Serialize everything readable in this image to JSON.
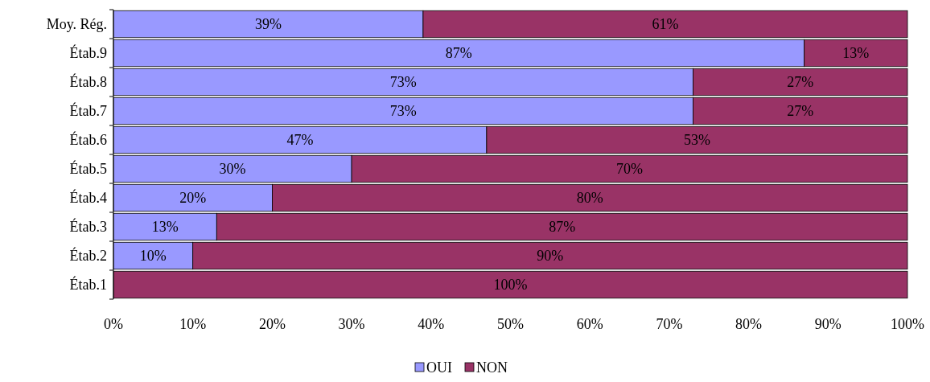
{
  "chart_data": {
    "type": "bar",
    "orientation": "horizontal",
    "stacked": true,
    "categories": [
      "Moy. Rég.",
      "Étab.9",
      "Étab.8",
      "Étab.7",
      "Étab.6",
      "Étab.5",
      "Étab.4",
      "Étab.3",
      "Étab.2",
      "Étab.1"
    ],
    "series": [
      {
        "name": "OUI",
        "color": "#9999ff",
        "values": [
          39,
          87,
          73,
          73,
          47,
          30,
          20,
          13,
          10,
          0
        ],
        "value_labels": [
          "39%",
          "87%",
          "73%",
          "73%",
          "47%",
          "30%",
          "20%",
          "13%",
          "10%",
          null
        ]
      },
      {
        "name": "NON",
        "color": "#993366",
        "values": [
          61,
          13,
          27,
          27,
          53,
          70,
          80,
          87,
          90,
          100
        ],
        "value_labels": [
          "61%",
          "13%",
          "27%",
          "27%",
          "53%",
          "70%",
          "80%",
          "87%",
          "90%",
          "100%"
        ]
      }
    ],
    "xlim": [
      0,
      100
    ],
    "xticks": [
      {
        "value": 0,
        "label": "0%"
      },
      {
        "value": 10,
        "label": "10%"
      },
      {
        "value": 20,
        "label": "20%"
      },
      {
        "value": 30,
        "label": "30%"
      },
      {
        "value": 40,
        "label": "40%"
      },
      {
        "value": 50,
        "label": "50%"
      },
      {
        "value": 60,
        "label": "60%"
      },
      {
        "value": 70,
        "label": "70%"
      },
      {
        "value": 80,
        "label": "80%"
      },
      {
        "value": 90,
        "label": "90%"
      },
      {
        "value": 100,
        "label": "100%"
      }
    ],
    "grid": false,
    "legend": "bottom"
  }
}
